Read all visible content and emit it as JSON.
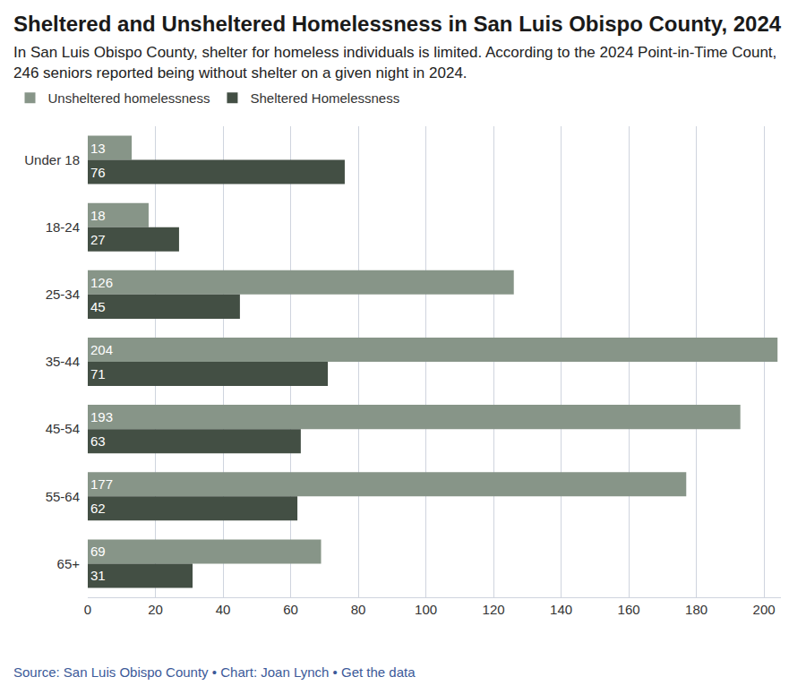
{
  "chart_data": {
    "type": "bar",
    "orientation": "horizontal",
    "title": "Sheltered and Unsheltered Homelessness in San Luis Obispo County, 2024",
    "subtitle": "In San Luis Obispo County, shelter for homeless individuals is limited. According to the 2024 Point-in-Time Count, 246 seniors reported being without shelter on a given night in 2024.",
    "source": "Source: San Luis Obispo County • Chart: Joan Lynch • Get the data",
    "categories": [
      "Under 18",
      "18-24",
      "25-34",
      "35-44",
      "45-54",
      "55-64",
      "65+"
    ],
    "series": [
      {
        "name": "Unsheltered homelessness",
        "color": "#879588",
        "values": [
          13,
          18,
          126,
          204,
          193,
          177,
          69
        ]
      },
      {
        "name": "Sheltered Homelessness",
        "color": "#434f44",
        "values": [
          76,
          27,
          45,
          71,
          63,
          62,
          31
        ]
      }
    ],
    "xlim": [
      0,
      205
    ],
    "xticks": [
      0,
      20,
      40,
      60,
      80,
      100,
      120,
      140,
      160,
      180,
      200
    ],
    "grid": true,
    "legend": "top-left",
    "stacked": false,
    "data_labels": true
  }
}
